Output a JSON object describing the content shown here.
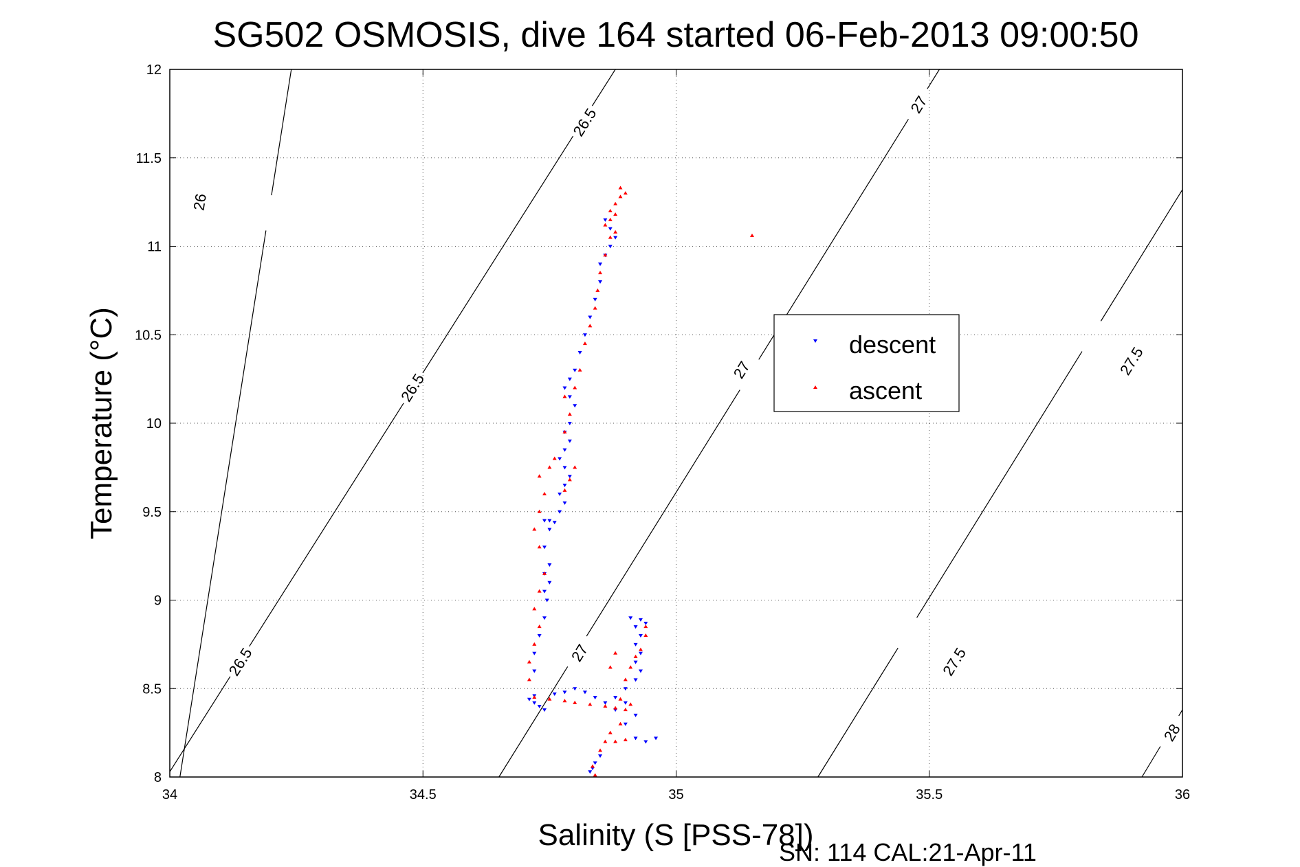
{
  "chart_data": {
    "type": "scatter",
    "title": "SG502 OSMOSIS, dive 164 started 06-Feb-2013 09:00:50",
    "xlabel": "Salinity (S [PSS-78])",
    "ylabel": "Temperature (°C)",
    "footer": "SN: 114  CAL:21-Apr-11",
    "xlim": [
      34,
      36
    ],
    "ylim": [
      8,
      12
    ],
    "x_ticks": [
      "34",
      "34.5",
      "35",
      "35.5",
      "36"
    ],
    "y_ticks": [
      "8",
      "8.5",
      "9",
      "9.5",
      "10",
      "10.5",
      "11",
      "11.5",
      "12"
    ],
    "grid": true,
    "legend_position": "right-center",
    "density_contours": [
      {
        "label": "26",
        "line": [
          [
            34.02,
            8.0
          ],
          [
            34.24,
            12.0
          ]
        ],
        "labels_at": [
          [
            34.06,
            11.25
          ]
        ]
      },
      {
        "label": "26.5",
        "line": [
          [
            34.0,
            8.03
          ],
          [
            34.88,
            12.0
          ]
        ],
        "labels_at": [
          [
            34.14,
            8.65
          ],
          [
            34.48,
            10.2
          ],
          [
            34.82,
            11.7
          ]
        ]
      },
      {
        "label": "27",
        "line": [
          [
            34.65,
            8.0
          ],
          [
            35.52,
            12.0
          ]
        ],
        "labels_at": [
          [
            34.81,
            8.7
          ],
          [
            35.13,
            10.3
          ],
          [
            35.48,
            11.8
          ]
        ]
      },
      {
        "label": "27.5",
        "line": [
          [
            35.28,
            8.0
          ],
          [
            36.0,
            11.32
          ]
        ],
        "labels_at": [
          [
            35.55,
            8.65
          ],
          [
            35.9,
            10.35
          ]
        ]
      },
      {
        "label": "28",
        "line": [
          [
            35.92,
            8.0
          ],
          [
            36.0,
            8.38
          ]
        ],
        "labels_at": [
          [
            35.98,
            8.25
          ]
        ]
      }
    ],
    "series": [
      {
        "name": "descent",
        "color": "#0000ff",
        "marker": "triangle-down",
        "points": [
          [
            34.83,
            8.03
          ],
          [
            34.835,
            8.05
          ],
          [
            34.84,
            8.08
          ],
          [
            34.85,
            8.12
          ],
          [
            34.96,
            8.22
          ],
          [
            34.94,
            8.2
          ],
          [
            34.92,
            8.22
          ],
          [
            34.9,
            8.3
          ],
          [
            34.92,
            8.35
          ],
          [
            34.88,
            8.38
          ],
          [
            34.9,
            8.42
          ],
          [
            34.88,
            8.45
          ],
          [
            34.9,
            8.5
          ],
          [
            34.92,
            8.55
          ],
          [
            34.93,
            8.6
          ],
          [
            34.92,
            8.65
          ],
          [
            34.93,
            8.7
          ],
          [
            34.92,
            8.75
          ],
          [
            34.93,
            8.8
          ],
          [
            34.92,
            8.85
          ],
          [
            34.94,
            8.87
          ],
          [
            34.93,
            8.89
          ],
          [
            34.91,
            8.9
          ],
          [
            34.72,
            8.42
          ],
          [
            34.73,
            8.4
          ],
          [
            34.74,
            8.38
          ],
          [
            34.71,
            8.44
          ],
          [
            34.72,
            8.46
          ],
          [
            34.76,
            8.47
          ],
          [
            34.78,
            8.48
          ],
          [
            34.8,
            8.5
          ],
          [
            34.82,
            8.48
          ],
          [
            34.84,
            8.45
          ],
          [
            34.86,
            8.42
          ],
          [
            34.72,
            8.6
          ],
          [
            34.72,
            8.7
          ],
          [
            34.73,
            8.8
          ],
          [
            34.74,
            8.9
          ],
          [
            34.745,
            9.0
          ],
          [
            34.74,
            9.05
          ],
          [
            34.75,
            9.1
          ],
          [
            34.74,
            9.15
          ],
          [
            34.75,
            9.2
          ],
          [
            34.74,
            9.3
          ],
          [
            34.75,
            9.4
          ],
          [
            34.74,
            9.45
          ],
          [
            34.75,
            9.45
          ],
          [
            34.76,
            9.44
          ],
          [
            34.77,
            9.5
          ],
          [
            34.78,
            9.55
          ],
          [
            34.77,
            9.6
          ],
          [
            34.78,
            9.65
          ],
          [
            34.79,
            9.7
          ],
          [
            34.78,
            9.75
          ],
          [
            34.77,
            9.8
          ],
          [
            34.78,
            9.85
          ],
          [
            34.79,
            9.9
          ],
          [
            34.78,
            9.95
          ],
          [
            34.79,
            10.0
          ],
          [
            34.8,
            10.1
          ],
          [
            34.79,
            10.15
          ],
          [
            34.78,
            10.2
          ],
          [
            34.79,
            10.25
          ],
          [
            34.8,
            10.3
          ],
          [
            34.81,
            10.4
          ],
          [
            34.82,
            10.5
          ],
          [
            34.83,
            10.6
          ],
          [
            34.84,
            10.7
          ],
          [
            34.85,
            10.8
          ],
          [
            34.85,
            10.9
          ],
          [
            34.86,
            10.95
          ],
          [
            34.87,
            11.0
          ],
          [
            34.88,
            11.05
          ],
          [
            34.87,
            11.1
          ],
          [
            34.86,
            11.15
          ]
        ]
      },
      {
        "name": "ascent",
        "color": "#ff0000",
        "marker": "triangle-up",
        "points": [
          [
            34.84,
            8.01
          ],
          [
            34.835,
            8.06
          ],
          [
            34.85,
            8.15
          ],
          [
            34.86,
            8.2
          ],
          [
            34.88,
            8.2
          ],
          [
            34.9,
            8.21
          ],
          [
            34.87,
            8.25
          ],
          [
            34.89,
            8.3
          ],
          [
            34.9,
            8.38
          ],
          [
            34.91,
            8.41
          ],
          [
            34.89,
            8.44
          ],
          [
            34.72,
            8.45
          ],
          [
            34.75,
            8.44
          ],
          [
            34.78,
            8.43
          ],
          [
            34.8,
            8.42
          ],
          [
            34.83,
            8.41
          ],
          [
            34.86,
            8.4
          ],
          [
            34.88,
            8.39
          ],
          [
            34.71,
            8.55
          ],
          [
            34.71,
            8.65
          ],
          [
            34.72,
            8.75
          ],
          [
            34.73,
            8.85
          ],
          [
            34.72,
            8.95
          ],
          [
            34.73,
            9.05
          ],
          [
            34.74,
            9.15
          ],
          [
            34.73,
            9.3
          ],
          [
            34.72,
            9.4
          ],
          [
            34.73,
            9.5
          ],
          [
            34.74,
            9.6
          ],
          [
            34.73,
            9.7
          ],
          [
            34.75,
            9.75
          ],
          [
            34.76,
            9.8
          ],
          [
            34.78,
            9.62
          ],
          [
            34.79,
            9.68
          ],
          [
            34.8,
            9.75
          ],
          [
            34.9,
            8.55
          ],
          [
            34.91,
            8.62
          ],
          [
            34.92,
            8.68
          ],
          [
            34.93,
            8.72
          ],
          [
            34.94,
            8.8
          ],
          [
            34.94,
            8.85
          ],
          [
            34.88,
            8.7
          ],
          [
            34.87,
            8.62
          ],
          [
            34.78,
            9.95
          ],
          [
            34.79,
            10.05
          ],
          [
            34.78,
            10.15
          ],
          [
            34.8,
            10.2
          ],
          [
            34.81,
            10.3
          ],
          [
            34.82,
            10.45
          ],
          [
            34.83,
            10.55
          ],
          [
            34.84,
            10.65
          ],
          [
            34.845,
            10.75
          ],
          [
            34.85,
            10.85
          ],
          [
            34.86,
            10.95
          ],
          [
            34.87,
            11.05
          ],
          [
            34.88,
            11.08
          ],
          [
            34.86,
            11.12
          ],
          [
            34.87,
            11.15
          ],
          [
            34.88,
            11.18
          ],
          [
            34.87,
            11.2
          ],
          [
            34.88,
            11.24
          ],
          [
            34.89,
            11.28
          ],
          [
            34.9,
            11.3
          ],
          [
            34.89,
            11.33
          ],
          [
            35.15,
            11.06
          ]
        ]
      }
    ]
  }
}
